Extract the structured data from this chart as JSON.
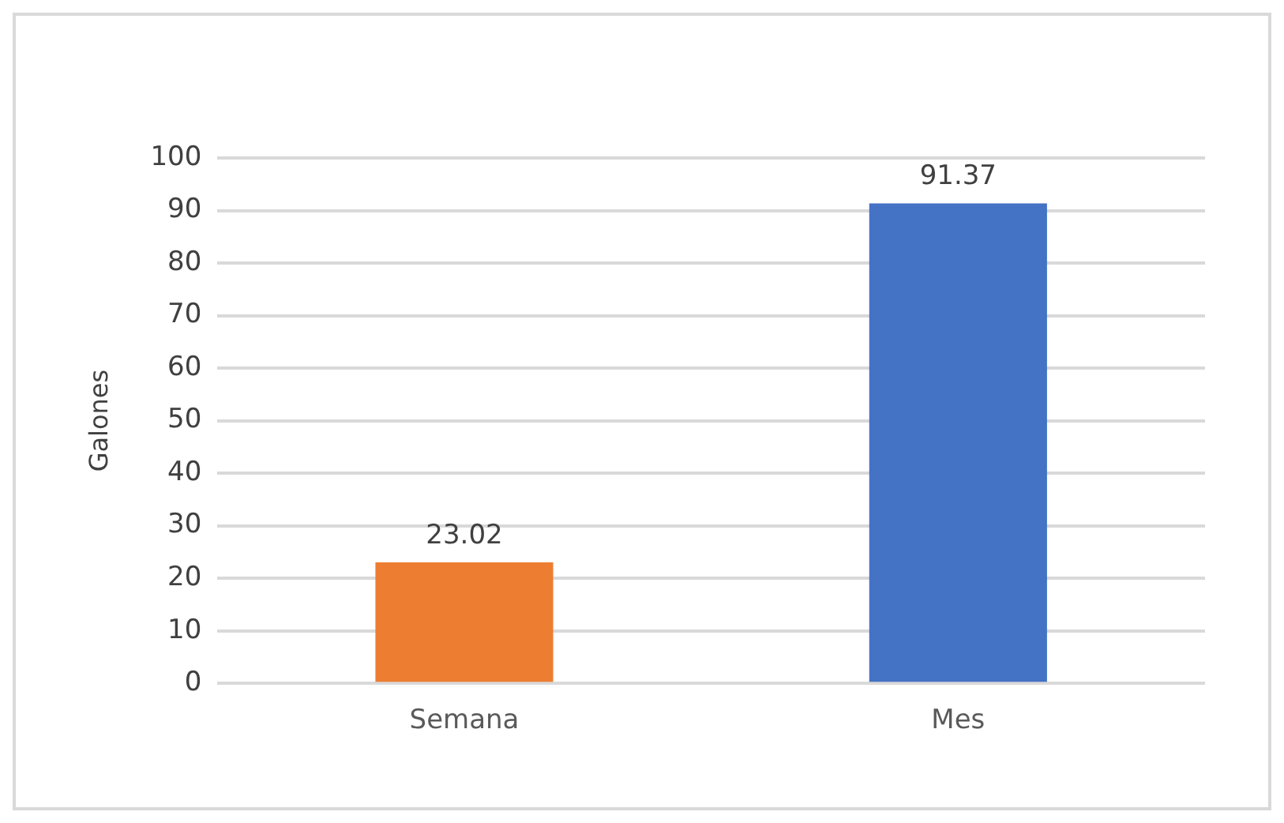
{
  "chart_data": {
    "type": "bar",
    "ylabel": "Galones",
    "categories": [
      "Semana",
      "Mes"
    ],
    "values": [
      23.02,
      91.37
    ],
    "colors": [
      "#ed7d31",
      "#4472c4"
    ],
    "ylim": [
      0,
      100
    ],
    "yticks": [
      0,
      10,
      20,
      30,
      40,
      50,
      60,
      70,
      80,
      90,
      100
    ],
    "grid": "y",
    "data_labels": true,
    "legend": false
  }
}
